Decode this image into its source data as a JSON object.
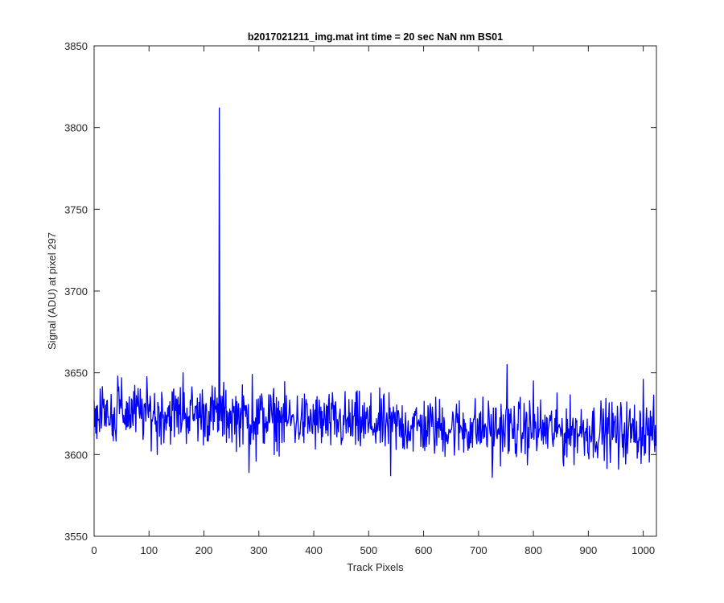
{
  "chart_data": {
    "type": "line",
    "title": "b2017021211_img.mat int time = 20 sec  NaN nm BS01",
    "xlabel": "Track Pixels",
    "ylabel": "Signal (ADU) at pixel 297",
    "xlim": [
      0,
      1024
    ],
    "ylim": [
      3550,
      3850
    ],
    "xticks": [
      0,
      100,
      200,
      300,
      400,
      500,
      600,
      700,
      800,
      900,
      1000
    ],
    "yticks": [
      3550,
      3600,
      3650,
      3700,
      3750,
      3800,
      3850
    ],
    "grid": false,
    "box": true,
    "series": [
      {
        "color": "#0000ff",
        "description": "noisy signal trace, one value per track pixel 0-1023; baseline ~3626 near pixel 0 drifting to ~3614 near pixel 1023, sharp spike to 3812 at pixel 228",
        "spike": {
          "x": 228,
          "y": 3812
        },
        "notable_points": [
          {
            "x": 43,
            "y": 3648
          },
          {
            "x": 115,
            "y": 3600
          },
          {
            "x": 162,
            "y": 3650
          },
          {
            "x": 228,
            "y": 3812
          },
          {
            "x": 282,
            "y": 3589
          },
          {
            "x": 288,
            "y": 3649
          },
          {
            "x": 295,
            "y": 3596
          },
          {
            "x": 540,
            "y": 3587
          },
          {
            "x": 725,
            "y": 3586
          },
          {
            "x": 752,
            "y": 3655
          },
          {
            "x": 800,
            "y": 3645
          },
          {
            "x": 855,
            "y": 3593
          },
          {
            "x": 955,
            "y": 3591
          },
          {
            "x": 1000,
            "y": 3646
          }
        ],
        "baseline": [
          {
            "x": 0,
            "y": 3626
          },
          {
            "x": 200,
            "y": 3625
          },
          {
            "x": 400,
            "y": 3620
          },
          {
            "x": 600,
            "y": 3617
          },
          {
            "x": 800,
            "y": 3615
          },
          {
            "x": 1023,
            "y": 3614
          }
        ],
        "noise_amplitude": 9
      }
    ]
  }
}
